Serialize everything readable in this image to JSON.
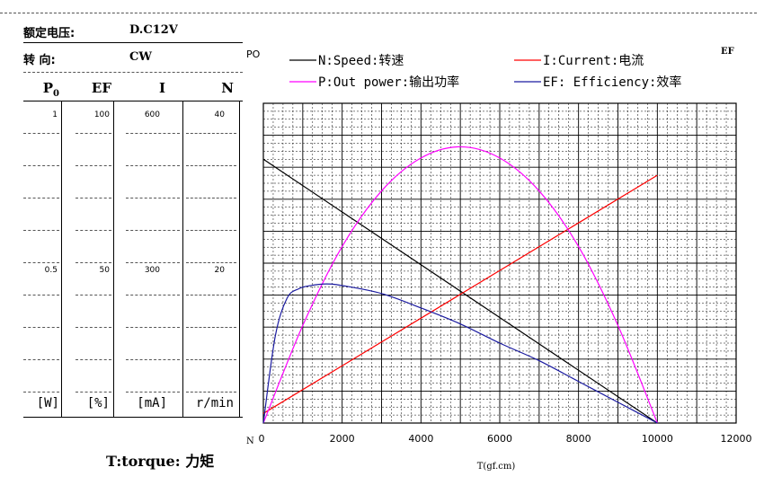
{
  "specs": {
    "rated_voltage_label": "额定电压:",
    "rated_voltage_value": "D.C12V",
    "direction_label": "转   向:",
    "direction_value": "CW"
  },
  "table": {
    "columns": [
      {
        "key": "po",
        "head": "P",
        "head_sub": "0",
        "top": "1",
        "mid": "0.5",
        "unit": "[W]"
      },
      {
        "key": "ef",
        "head": "EF",
        "head_sub": "",
        "top": "100",
        "mid": "50",
        "unit": "[%]"
      },
      {
        "key": "i",
        "head": "I",
        "head_sub": "",
        "top": "600",
        "mid": "300",
        "unit": "[mA]"
      },
      {
        "key": "n",
        "head": "N",
        "head_sub": "",
        "top": "40",
        "mid": "20",
        "unit": "r/min"
      }
    ]
  },
  "torque_note": "T:torque: 力矩",
  "colors": {
    "speed": "#000000",
    "current": "#ff0000",
    "power": "#ff00ff",
    "efficiency": "#1a1aa0",
    "grid": "#000000"
  },
  "chart_data": {
    "type": "line",
    "left_axis_label": "PO",
    "right_axis_label": "EF",
    "bottom_left_label": "N",
    "xlabel": "T(gf.cm)",
    "xlim": [
      0,
      12000
    ],
    "x_ticks": [
      "0",
      "2000",
      "4000",
      "6000",
      "8000",
      "10000",
      "12000"
    ],
    "y_scale_rows": 10,
    "grid": true,
    "legend_position": "top",
    "series": [
      {
        "name": "N:Speed:转速",
        "color_key": "speed",
        "x": [
          0,
          10000
        ],
        "y_frac": [
          0.825,
          0.0
        ]
      },
      {
        "name": "I:Current:电流",
        "color_key": "current",
        "x": [
          0,
          10000
        ],
        "y_frac": [
          0.03,
          0.775
        ]
      },
      {
        "name": "P:Out power:输出功率",
        "color_key": "power",
        "x": [
          0,
          1000,
          2000,
          3000,
          4000,
          5000,
          6000,
          7000,
          8000,
          9000,
          10000
        ],
        "y_frac": [
          0.0,
          0.305,
          0.552,
          0.726,
          0.829,
          0.864,
          0.829,
          0.726,
          0.552,
          0.305,
          0.0
        ]
      },
      {
        "name": "EF: Efficiency:效率",
        "color_key": "efficiency",
        "x": [
          0,
          300,
          600,
          900,
          1200,
          1600,
          2000,
          3000,
          4000,
          5000,
          6000,
          7000,
          8000,
          9000,
          10000
        ],
        "y_frac": [
          0.0,
          0.27,
          0.39,
          0.42,
          0.43,
          0.435,
          0.43,
          0.405,
          0.36,
          0.31,
          0.25,
          0.195,
          0.13,
          0.065,
          0.0
        ]
      }
    ],
    "legend": [
      {
        "label": "N:Speed:转速",
        "color_key": "speed"
      },
      {
        "label": "I:Current:电流",
        "color_key": "current"
      },
      {
        "label": "P:Out power:输出功率",
        "color_key": "power"
      },
      {
        "label": "EF: Efficiency:效率",
        "color_key": "efficiency"
      }
    ]
  }
}
